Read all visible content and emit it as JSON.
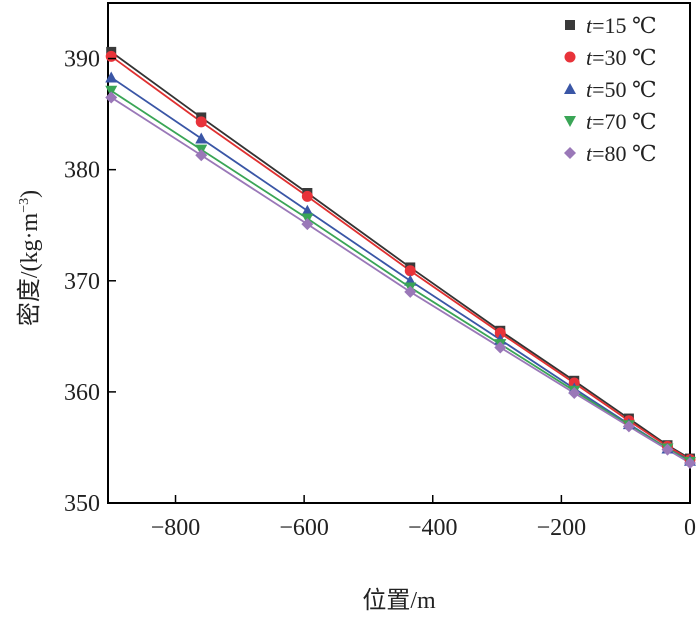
{
  "chart_data": {
    "type": "line",
    "xlabel": "位置/m",
    "ylabel": "密度/(kg·m",
    "ylabel_sup": "−3",
    "ylabel_close": ")",
    "xlim": [
      -905,
      0
    ],
    "ylim": [
      350,
      395
    ],
    "xticks": [
      -800,
      -600,
      -400,
      -200,
      0
    ],
    "xtick_labels": [
      "−800",
      "−600",
      "−400",
      "−200",
      "0"
    ],
    "yticks": [
      350,
      360,
      370,
      380,
      390
    ],
    "ytick_labels": [
      "350",
      "360",
      "370",
      "380",
      "390"
    ],
    "legend_position": "top-right",
    "x": [
      -900,
      -760,
      -595,
      -435,
      -295,
      -180,
      -95,
      -35,
      0
    ],
    "series": [
      {
        "legend_var": "t",
        "legend_rest": "=15 ℃",
        "marker": "square",
        "color": "#3a3a3a",
        "line_color": "#333333",
        "values": [
          390.6,
          384.7,
          377.9,
          371.2,
          365.5,
          361.0,
          357.6,
          355.2,
          354.0
        ]
      },
      {
        "legend_var": "t",
        "legend_rest": "=30 ℃",
        "marker": "circle",
        "color": "#e8333a",
        "line_color": "#e03030",
        "values": [
          390.2,
          384.3,
          377.6,
          370.9,
          365.3,
          360.8,
          357.4,
          355.1,
          353.9
        ]
      },
      {
        "legend_var": "t",
        "legend_rest": "=50 ℃",
        "marker": "triangle-up",
        "color": "#3a56a6",
        "line_color": "#3a56a6",
        "values": [
          388.3,
          382.8,
          376.3,
          370.0,
          364.7,
          360.3,
          357.1,
          354.9,
          353.8
        ]
      },
      {
        "legend_var": "t",
        "legend_rest": "=70 ℃",
        "marker": "triangle-down",
        "color": "#3aa556",
        "line_color": "#3aa556",
        "values": [
          387.1,
          381.8,
          375.6,
          369.4,
          364.3,
          360.1,
          357.0,
          354.9,
          353.7
        ]
      },
      {
        "legend_var": "t",
        "legend_rest": "=80 ℃",
        "marker": "diamond",
        "color": "#9a78b8",
        "line_color": "#9a78b8",
        "values": [
          386.5,
          381.3,
          375.1,
          369.0,
          364.0,
          359.9,
          356.9,
          354.8,
          353.6
        ]
      }
    ]
  }
}
